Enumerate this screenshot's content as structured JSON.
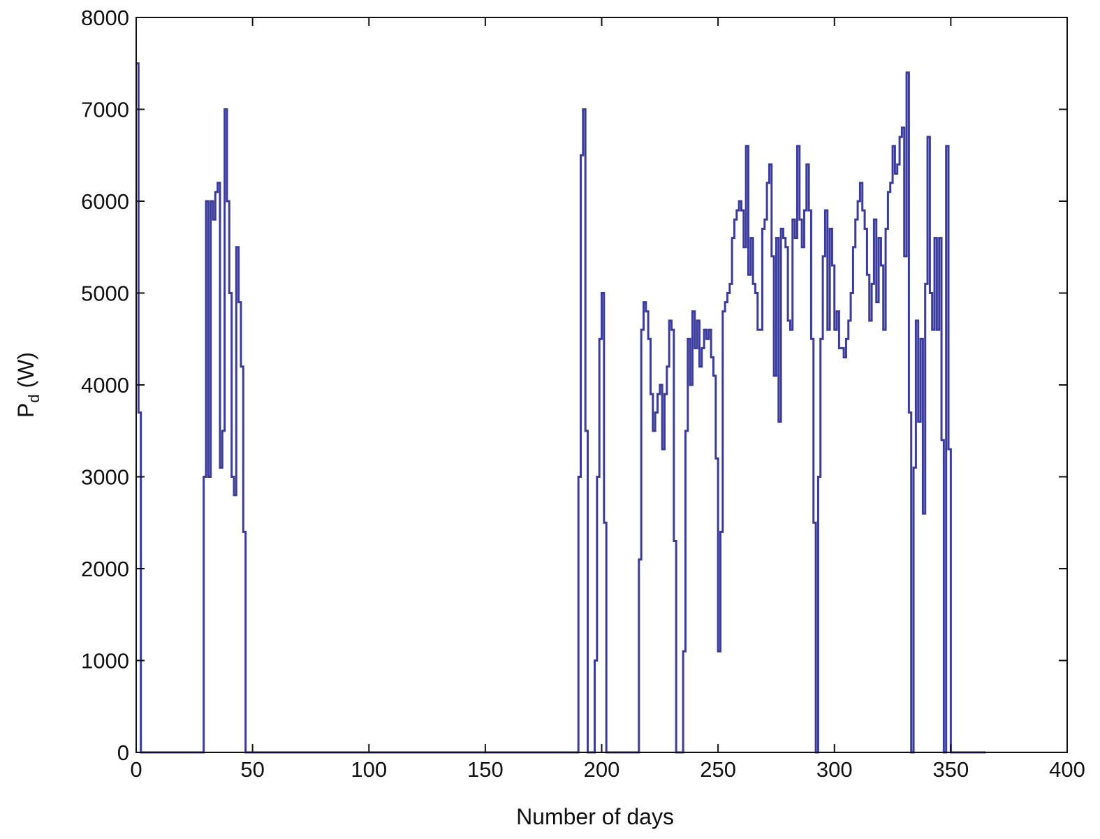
{
  "chart_data": {
    "type": "line",
    "style": "stairs",
    "title": "",
    "xlabel": "Number of days",
    "ylabel_main": "P",
    "ylabel_sub": "d",
    "ylabel_unit": " (W)",
    "xlim": [
      0,
      400
    ],
    "ylim": [
      0,
      8000
    ],
    "xticks": [
      "0",
      "50",
      "100",
      "150",
      "200",
      "250",
      "300",
      "350",
      "400"
    ],
    "yticks": [
      "0",
      "1000",
      "2000",
      "3000",
      "4000",
      "5000",
      "6000",
      "7000",
      "8000"
    ],
    "grid": false,
    "line_color": "#3b3b9c",
    "x_end": 365,
    "series": [
      {
        "name": "Pd",
        "points": [
          [
            0,
            7500
          ],
          [
            1,
            3700
          ],
          [
            2,
            0
          ],
          [
            29,
            3000
          ],
          [
            30,
            6000
          ],
          [
            31,
            3000
          ],
          [
            32,
            6000
          ],
          [
            33,
            5800
          ],
          [
            34,
            6100
          ],
          [
            35,
            6200
          ],
          [
            36,
            3100
          ],
          [
            37,
            3500
          ],
          [
            38,
            7000
          ],
          [
            39,
            6000
          ],
          [
            40,
            5000
          ],
          [
            41,
            3000
          ],
          [
            42,
            2800
          ],
          [
            43,
            5500
          ],
          [
            44,
            4900
          ],
          [
            45,
            4200
          ],
          [
            46,
            2400
          ],
          [
            47,
            0
          ],
          [
            190,
            3000
          ],
          [
            191,
            6500
          ],
          [
            192,
            7000
          ],
          [
            193,
            3500
          ],
          [
            194,
            0
          ],
          [
            197,
            1000
          ],
          [
            198,
            3000
          ],
          [
            199,
            4500
          ],
          [
            200,
            5000
          ],
          [
            201,
            2500
          ],
          [
            202,
            0
          ],
          [
            216,
            2100
          ],
          [
            217,
            4600
          ],
          [
            218,
            4900
          ],
          [
            219,
            4800
          ],
          [
            220,
            4500
          ],
          [
            221,
            3900
          ],
          [
            222,
            3500
          ],
          [
            223,
            3700
          ],
          [
            224,
            3900
          ],
          [
            225,
            4000
          ],
          [
            226,
            3300
          ],
          [
            227,
            3900
          ],
          [
            228,
            4200
          ],
          [
            229,
            4700
          ],
          [
            230,
            4600
          ],
          [
            231,
            2300
          ],
          [
            232,
            0
          ],
          [
            235,
            1100
          ],
          [
            236,
            3500
          ],
          [
            237,
            4500
          ],
          [
            238,
            4000
          ],
          [
            239,
            4800
          ],
          [
            240,
            4400
          ],
          [
            241,
            4700
          ],
          [
            242,
            4200
          ],
          [
            243,
            4400
          ],
          [
            244,
            4600
          ],
          [
            245,
            4500
          ],
          [
            246,
            4600
          ],
          [
            247,
            4300
          ],
          [
            248,
            4100
          ],
          [
            249,
            3200
          ],
          [
            250,
            1100
          ],
          [
            251,
            2400
          ],
          [
            252,
            4800
          ],
          [
            253,
            4900
          ],
          [
            254,
            5000
          ],
          [
            255,
            5100
          ],
          [
            256,
            5600
          ],
          [
            257,
            5800
          ],
          [
            258,
            5900
          ],
          [
            259,
            6000
          ],
          [
            260,
            5900
          ],
          [
            261,
            5500
          ],
          [
            262,
            6600
          ],
          [
            263,
            5200
          ],
          [
            264,
            5600
          ],
          [
            265,
            5100
          ],
          [
            266,
            5000
          ],
          [
            267,
            4600
          ],
          [
            268,
            4600
          ],
          [
            269,
            5700
          ],
          [
            270,
            5800
          ],
          [
            271,
            6200
          ],
          [
            272,
            6400
          ],
          [
            273,
            5400
          ],
          [
            274,
            4100
          ],
          [
            275,
            5600
          ],
          [
            276,
            3600
          ],
          [
            277,
            5700
          ],
          [
            278,
            5600
          ],
          [
            279,
            5500
          ],
          [
            280,
            4700
          ],
          [
            281,
            4600
          ],
          [
            282,
            5800
          ],
          [
            283,
            5600
          ],
          [
            284,
            6600
          ],
          [
            285,
            5800
          ],
          [
            286,
            5500
          ],
          [
            287,
            5900
          ],
          [
            288,
            6400
          ],
          [
            289,
            5900
          ],
          [
            290,
            4500
          ],
          [
            291,
            2500
          ],
          [
            292,
            0
          ],
          [
            293,
            3000
          ],
          [
            294,
            4500
          ],
          [
            295,
            5400
          ],
          [
            296,
            5900
          ],
          [
            297,
            4600
          ],
          [
            298,
            5700
          ],
          [
            299,
            5300
          ],
          [
            300,
            4600
          ],
          [
            301,
            4800
          ],
          [
            302,
            4400
          ],
          [
            303,
            4400
          ],
          [
            304,
            4300
          ],
          [
            305,
            4500
          ],
          [
            306,
            4700
          ],
          [
            307,
            5000
          ],
          [
            308,
            5500
          ],
          [
            309,
            5800
          ],
          [
            310,
            6000
          ],
          [
            311,
            6200
          ],
          [
            312,
            5900
          ],
          [
            313,
            5700
          ],
          [
            314,
            5200
          ],
          [
            315,
            4700
          ],
          [
            316,
            5100
          ],
          [
            317,
            5800
          ],
          [
            318,
            4900
          ],
          [
            319,
            5600
          ],
          [
            320,
            5300
          ],
          [
            321,
            4600
          ],
          [
            322,
            5700
          ],
          [
            323,
            6100
          ],
          [
            324,
            6200
          ],
          [
            325,
            6600
          ],
          [
            326,
            6300
          ],
          [
            327,
            6400
          ],
          [
            328,
            6700
          ],
          [
            329,
            6800
          ],
          [
            330,
            5400
          ],
          [
            331,
            7400
          ],
          [
            332,
            3700
          ],
          [
            333,
            0
          ],
          [
            334,
            3100
          ],
          [
            335,
            4700
          ],
          [
            336,
            3600
          ],
          [
            337,
            4500
          ],
          [
            338,
            2600
          ],
          [
            339,
            5100
          ],
          [
            340,
            6700
          ],
          [
            341,
            5000
          ],
          [
            342,
            4600
          ],
          [
            343,
            5600
          ],
          [
            344,
            4600
          ],
          [
            345,
            5600
          ],
          [
            346,
            3400
          ],
          [
            347,
            0
          ],
          [
            348,
            6600
          ],
          [
            349,
            3300
          ],
          [
            350,
            0
          ]
        ]
      }
    ]
  }
}
